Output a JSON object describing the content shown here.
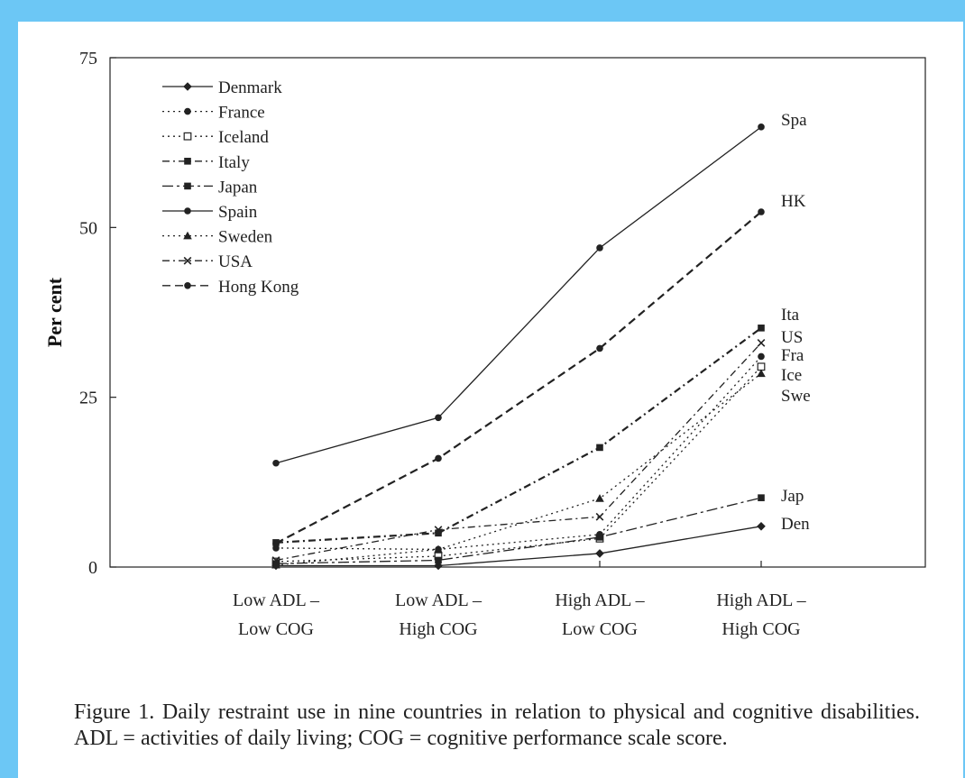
{
  "figure": {
    "caption": "Figure 1. Daily restraint use in nine countries in relation to physical and cognitive disabilities. ADL = activities of daily living; COG = cognitive performance scale score."
  },
  "chart_data": {
    "type": "line",
    "ylabel": "Per cent",
    "xlabel": "",
    "ylim": [
      0,
      75
    ],
    "yticks": [
      0,
      25,
      50,
      75
    ],
    "categories": [
      [
        "Low ADL –",
        "Low COG"
      ],
      [
        "Low ADL –",
        "High COG"
      ],
      [
        "High ADL –",
        "Low COG"
      ],
      [
        "High ADL –",
        "High COG"
      ]
    ],
    "legend_position": "top-left",
    "series": [
      {
        "name": "Denmark",
        "end_label": "Den",
        "dash": "solid",
        "marker": "diamond",
        "values": [
          0.2,
          0.2,
          2.0,
          6.0
        ]
      },
      {
        "name": "France",
        "end_label": "Fra",
        "dash": "dotted",
        "marker": "circle",
        "values": [
          2.8,
          2.6,
          4.8,
          31.0
        ]
      },
      {
        "name": "Iceland",
        "end_label": "Ice",
        "dash": "dotted",
        "marker": "square-open",
        "values": [
          0.8,
          1.6,
          4.2,
          29.5
        ]
      },
      {
        "name": "Italy",
        "end_label": "Ita",
        "dash": "dashdot",
        "marker": "square",
        "values": [
          3.6,
          5.0,
          17.6,
          35.2
        ]
      },
      {
        "name": "Japan",
        "end_label": "Jap",
        "dash": "dashdotlong",
        "marker": "square",
        "values": [
          0.5,
          1.0,
          4.4,
          10.2
        ]
      },
      {
        "name": "Spain",
        "end_label": "Spa",
        "dash": "solid",
        "marker": "circle",
        "values": [
          15.3,
          22.0,
          47.0,
          64.8
        ]
      },
      {
        "name": "Sweden",
        "end_label": "Swe",
        "dash": "dotted",
        "marker": "triangle",
        "values": [
          0.3,
          2.6,
          10.1,
          28.5
        ]
      },
      {
        "name": "USA",
        "end_label": "US",
        "dash": "dashdot",
        "marker": "x",
        "values": [
          1.0,
          5.5,
          7.4,
          33.0
        ]
      },
      {
        "name": "Hong Kong",
        "end_label": "HK",
        "dash": "dashed",
        "marker": "circle",
        "values": [
          3.5,
          16.0,
          32.2,
          52.3
        ]
      }
    ],
    "grid": false
  }
}
